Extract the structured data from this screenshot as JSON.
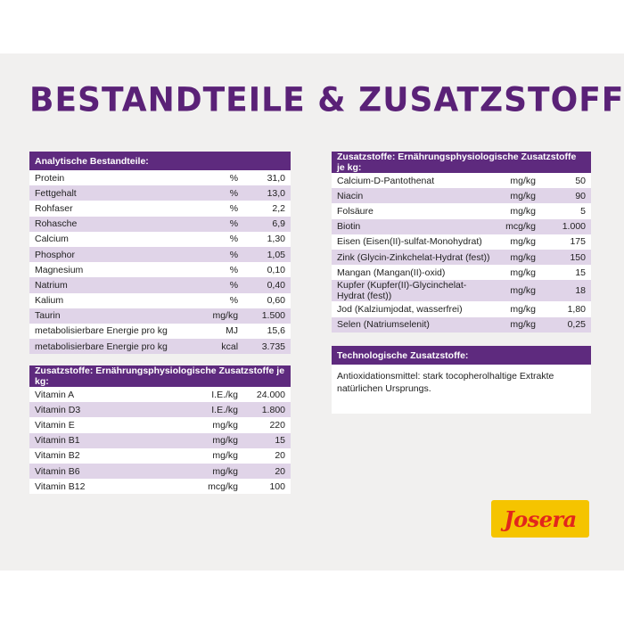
{
  "title": "BESTANDTEILE & ZUSATZSTOFFE",
  "analytic": {
    "header": "Analytische Bestandteile:",
    "rows": [
      {
        "name": "Protein",
        "unit": "%",
        "value": "31,0"
      },
      {
        "name": "Fettgehalt",
        "unit": "%",
        "value": "13,0"
      },
      {
        "name": "Rohfaser",
        "unit": "%",
        "value": "2,2"
      },
      {
        "name": "Rohasche",
        "unit": "%",
        "value": "6,9"
      },
      {
        "name": "Calcium",
        "unit": "%",
        "value": "1,30"
      },
      {
        "name": "Phosphor",
        "unit": "%",
        "value": "1,05"
      },
      {
        "name": "Magnesium",
        "unit": "%",
        "value": "0,10"
      },
      {
        "name": "Natrium",
        "unit": "%",
        "value": "0,40"
      },
      {
        "name": "Kalium",
        "unit": "%",
        "value": "0,60"
      },
      {
        "name": "Taurin",
        "unit": "mg/kg",
        "value": "1.500"
      },
      {
        "name": "metabolisierbare Energie pro kg",
        "unit": "MJ",
        "value": "15,6"
      },
      {
        "name": "metabolisierbare Energie pro kg",
        "unit": "kcal",
        "value": "3.735"
      }
    ]
  },
  "vitamins": {
    "header": "Zusatzstoffe: Ernährungsphysiologische Zusatzstoffe je kg:",
    "rows": [
      {
        "name": "Vitamin A",
        "unit": "I.E./kg",
        "value": "24.000"
      },
      {
        "name": "Vitamin D3",
        "unit": "I.E./kg",
        "value": "1.800"
      },
      {
        "name": "Vitamin E",
        "unit": "mg/kg",
        "value": "220"
      },
      {
        "name": "Vitamin B1",
        "unit": "mg/kg",
        "value": "15"
      },
      {
        "name": "Vitamin B2",
        "unit": "mg/kg",
        "value": "20"
      },
      {
        "name": "Vitamin B6",
        "unit": "mg/kg",
        "value": "20"
      },
      {
        "name": "Vitamin B12",
        "unit": "mcg/kg",
        "value": "100"
      }
    ]
  },
  "minerals": {
    "header": "Zusatzstoffe: Ernährungsphysiologische Zusatzstoffe je kg:",
    "rows": [
      {
        "name": "Calcium-D-Pantothenat",
        "unit": "mg/kg",
        "value": "50"
      },
      {
        "name": "Niacin",
        "unit": "mg/kg",
        "value": "90"
      },
      {
        "name": "Folsäure",
        "unit": "mg/kg",
        "value": "5"
      },
      {
        "name": "Biotin",
        "unit": "mcg/kg",
        "value": "1.000"
      },
      {
        "name": "Eisen (Eisen(II)-sulfat-Monohydrat)",
        "unit": "mg/kg",
        "value": "175"
      },
      {
        "name": "Zink (Glycin-Zinkchelat-Hydrat (fest))",
        "unit": "mg/kg",
        "value": "150"
      },
      {
        "name": "Mangan (Mangan(II)-oxid)",
        "unit": "mg/kg",
        "value": "15"
      },
      {
        "name": "Kupfer (Kupfer(II)-Glycinchelat-Hydrat (fest))",
        "unit": "mg/kg",
        "value": "18"
      },
      {
        "name": "Jod (Kalziumjodat, wasserfrei)",
        "unit": "mg/kg",
        "value": "1,80"
      },
      {
        "name": "Selen (Natriumselenit)",
        "unit": "mg/kg",
        "value": "0,25"
      }
    ]
  },
  "tech": {
    "header": "Technologische Zusatzstoffe:",
    "text": "Antioxidationsmittel: stark tocopherolhaltige Extrakte natürlichen Ursprungs."
  },
  "logo": "Josera",
  "colors": {
    "header": "#5e2a7e",
    "stripe": "#e0d4e8",
    "title": "#5a2177",
    "logo_bg": "#f5c400",
    "logo_text": "#e2261c"
  }
}
